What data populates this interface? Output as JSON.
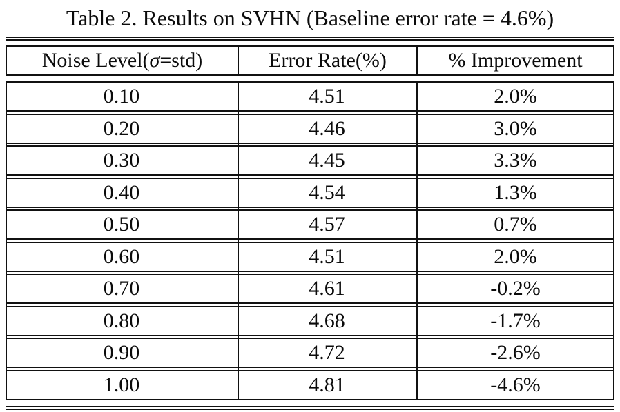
{
  "table": {
    "title": "Table 2. Results on SVHN (Baseline error rate = 4.6%)",
    "header": {
      "col1_pre": "Noise Level(",
      "col1_sigma": "σ",
      "col1_post": "=std)",
      "col2": "Error Rate(%)",
      "col3": "% Improvement"
    },
    "rows": [
      [
        "0.10",
        "4.51",
        "2.0%"
      ],
      [
        "0.20",
        "4.46",
        "3.0%"
      ],
      [
        "0.30",
        "4.45",
        "3.3%"
      ],
      [
        "0.40",
        "4.54",
        "1.3%"
      ],
      [
        "0.50",
        "4.57",
        "0.7%"
      ],
      [
        "0.60",
        "4.51",
        "2.0%"
      ],
      [
        "0.70",
        "4.61",
        "-0.2%"
      ],
      [
        "0.80",
        "4.68",
        "-1.7%"
      ],
      [
        "0.90",
        "4.72",
        "-2.6%"
      ],
      [
        "1.00",
        "4.81",
        "-4.6%"
      ]
    ],
    "colors": {
      "line": "#111111",
      "text": "#0b0b0b",
      "background": "#ffffff"
    }
  }
}
